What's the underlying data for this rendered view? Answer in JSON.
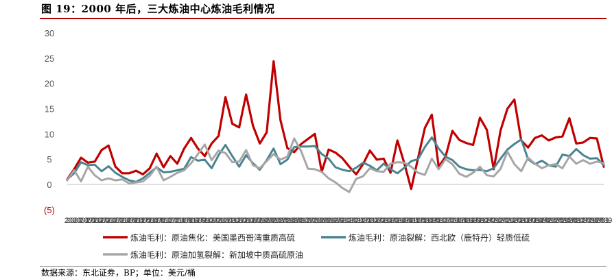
{
  "title": "图 19：2000 年后，三大炼油中心炼油毛利情况",
  "source": "数据来源：东北证券，BP；单位：美元/桶",
  "colors": {
    "rule": "#b00000",
    "axis": "#bfbfbf"
  },
  "chart_data": {
    "type": "line",
    "ylim": [
      -5,
      30
    ],
    "yticks": [
      "30",
      "25",
      "20",
      "15",
      "10",
      "5",
      "0",
      "(5)"
    ],
    "ytick_values": [
      30,
      25,
      20,
      15,
      10,
      5,
      0,
      -5
    ],
    "grid": false,
    "legend_position": "bottom",
    "x_tick_labels": [
      "2000",
      "2000-07",
      "2001-01",
      "2001-07",
      "2002-01",
      "2002-07",
      "2003-01",
      "2003-07",
      "2004-01",
      "2004-07",
      "2005-01",
      "2005-07",
      "2006-01",
      "2006-07",
      "2007-01",
      "2007-07",
      "2008-01",
      "2008-07",
      "2009-01",
      "2009-07",
      "2010-01",
      "2010-07",
      "2011-01",
      "2011-07",
      "2012-01",
      "2012-07",
      "2013-01",
      "2013-07",
      "2014-01",
      "2014-07",
      "2015-01",
      "2015-07",
      "2016-01",
      "2016-07",
      "2017-01",
      "2017-07",
      "2018-01",
      "2018-07",
      "2019-01",
      "2019-07",
      "2020-01",
      "2020-07",
      "2021-01",
      "2021-07",
      "2022-01",
      "2022-07",
      "2023-01",
      "2023-07",
      "2024-01",
      "2024-07",
      "2025-01",
      "2025-07",
      "2026-01",
      "2026-07",
      "2027-01",
      "2027-07",
      "2028-01",
      "2028-07",
      "2029-01",
      "2029-07",
      "2030-01",
      "2030-07",
      "2031-01",
      "2031-07",
      "2032-01",
      "2032-07",
      "2033-01",
      "2033-07",
      "2034-01",
      "2034-07",
      "2035-01",
      "2035-07",
      "2036-01",
      "2036-07",
      "2037-01",
      "2037-07",
      "2038-01",
      "2038-07",
      "2039-01"
    ],
    "series": [
      {
        "name": "炼油毛利：原油焦化：美国墨西哥湾重质高硫",
        "color": "#c00000",
        "values": [
          1.0,
          3.0,
          5.3,
          4.3,
          4.5,
          6.8,
          7.7,
          3.5,
          2.2,
          2.2,
          2.7,
          2.0,
          3.2,
          6.1,
          3.4,
          5.6,
          4.1,
          7.1,
          9.2,
          7.1,
          5.6,
          8.1,
          9.6,
          17.3,
          12.0,
          11.3,
          17.8,
          11.6,
          8.1,
          10.3,
          24.4,
          12.7,
          7.2,
          6.4,
          8.0,
          9.0,
          10.0,
          2.5,
          6.9,
          6.3,
          5.2,
          3.5,
          2.0,
          4.0,
          6.7,
          4.9,
          5.1,
          2.3,
          8.7,
          4.2,
          -0.9,
          5.2,
          11.2,
          13.8,
          3.5,
          5.5,
          10.6,
          8.8,
          8.2,
          7.8,
          13.2,
          10.8,
          3.0,
          10.7,
          15.0,
          16.8,
          8.7,
          7.3,
          9.2,
          9.7,
          8.7,
          9.3,
          9.5,
          13.1,
          8.1,
          8.3,
          9.2,
          9.1,
          3.5
        ]
      },
      {
        "name": "炼油毛利：原油裂解：西北欧（鹿特丹）轻质低硫",
        "color": "#4a8490",
        "values": [
          1.0,
          2.2,
          4.4,
          3.8,
          3.9,
          2.6,
          3.6,
          2.3,
          1.5,
          0.8,
          0.5,
          1.2,
          2.3,
          3.4,
          2.4,
          2.5,
          2.8,
          3.1,
          5.4,
          4.7,
          4.9,
          3.2,
          5.8,
          7.8,
          5.6,
          3.5,
          5.8,
          4.2,
          2.9,
          4.8,
          7.1,
          4.0,
          4.9,
          7.4,
          7.5,
          7.5,
          7.6,
          6.0,
          5.1,
          3.4,
          2.9,
          2.6,
          3.3,
          4.3,
          3.7,
          2.8,
          4.1,
          3.0,
          2.2,
          3.3,
          4.6,
          5.0,
          7.4,
          9.3,
          7.1,
          5.5,
          4.8,
          3.5,
          3.0,
          2.8,
          2.9,
          2.6,
          3.2,
          5.1,
          6.9,
          8.0,
          8.9,
          5.0,
          4.0,
          4.7,
          3.8,
          3.5,
          5.9,
          5.6,
          7.0,
          5.8,
          5.1,
          5.2,
          3.8
        ]
      },
      {
        "name": "炼油毛利：原油加氢裂解：新加坡中质高硫原油",
        "color": "#a6a6a6",
        "values": [
          0.8,
          2.8,
          0.6,
          3.5,
          1.8,
          0.8,
          1.2,
          0.8,
          1.0,
          0.2,
          0.4,
          0.6,
          1.7,
          3.5,
          0.8,
          1.5,
          2.3,
          2.8,
          4.2,
          6.0,
          7.9,
          4.8,
          6.7,
          6.2,
          4.4,
          4.5,
          6.8,
          3.8,
          3.2,
          4.6,
          6.0,
          4.9,
          5.5,
          9.1,
          6.6,
          3.1,
          3.0,
          2.5,
          1.2,
          0.4,
          -0.7,
          -1.5,
          1.1,
          1.6,
          3.2,
          2.6,
          2.5,
          4.1,
          4.4,
          4.3,
          3.5,
          2.3,
          1.9,
          5.1,
          3.0,
          5.0,
          4.0,
          2.1,
          1.5,
          2.3,
          3.5,
          1.8,
          1.6,
          3.1,
          6.5,
          4.0,
          2.6,
          5.3,
          4.1,
          3.2,
          3.8,
          4.0,
          3.2,
          5.5,
          4.1,
          4.8,
          4.1,
          4.5,
          4.2
        ]
      }
    ]
  }
}
